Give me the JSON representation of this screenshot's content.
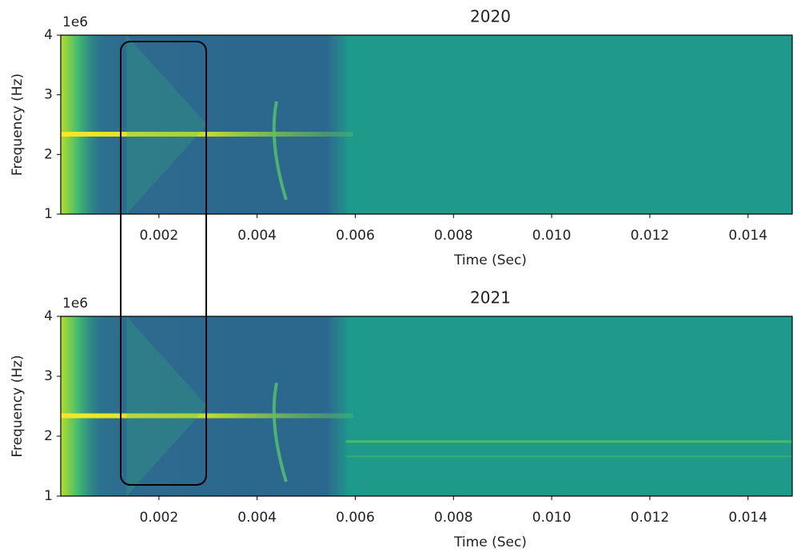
{
  "chart_data": [
    {
      "type": "spectrogram",
      "title": "2020",
      "xlabel": "Time (Sec)",
      "ylabel": "Frequency (Hz)",
      "y_offset_label": "1e6",
      "xlim": [
        0,
        0.0149
      ],
      "xticks": [
        0.002,
        0.004,
        0.006,
        0.008,
        {
          "value": 0.01,
          "label": "0.010"
        },
        0.012,
        0.014
      ],
      "ylim": [
        1000000,
        4000000
      ],
      "yticks": [
        {
          "value": 1000000,
          "label": "1"
        },
        {
          "value": 2000000,
          "label": "2"
        },
        {
          "value": 3000000,
          "label": "3"
        },
        {
          "value": 4000000,
          "label": "4"
        }
      ]
    },
    {
      "type": "spectrogram",
      "title": "2021",
      "xlabel": "Time (Sec)",
      "ylabel": "Frequency (Hz)",
      "y_offset_label": "1e6",
      "xlim": [
        0,
        0.0149
      ],
      "xticks": [
        0.002,
        0.004,
        0.006,
        0.008,
        {
          "value": 0.01,
          "label": "0.010"
        },
        0.012,
        0.014
      ],
      "ylim": [
        1000000,
        4000000
      ],
      "yticks": [
        {
          "value": 1000000,
          "label": "1"
        },
        {
          "value": 2000000,
          "label": "2"
        },
        {
          "value": 3000000,
          "label": "3"
        },
        {
          "value": 4000000,
          "label": "4"
        }
      ]
    }
  ]
}
